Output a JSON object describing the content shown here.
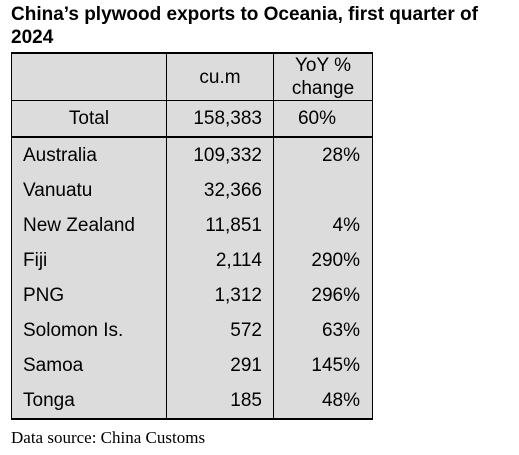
{
  "title": "China’s plywood exports to Oceania, first quarter of 2024",
  "table": {
    "headers": [
      "",
      "cu.m",
      "YoY %\nchange"
    ],
    "header_col2": "cu.m",
    "header_col3_line1": "YoY %",
    "header_col3_line2": "change",
    "total": {
      "label": "Total",
      "volume": "158,383",
      "yoy": "60%"
    },
    "rows": [
      {
        "country": "Australia",
        "volume": "109,332",
        "yoy": "28%"
      },
      {
        "country": "Vanuatu",
        "volume": "32,366",
        "yoy": ""
      },
      {
        "country": "New Zealand",
        "volume": "11,851",
        "yoy": "4%"
      },
      {
        "country": "Fiji",
        "volume": "2,114",
        "yoy": "290%"
      },
      {
        "country": "PNG",
        "volume": "1,312",
        "yoy": "296%"
      },
      {
        "country": "Solomon Is.",
        "volume": "572",
        "yoy": "63%"
      },
      {
        "country": "Samoa",
        "volume": "291",
        "yoy": "145%"
      },
      {
        "country": "Tonga",
        "volume": "185",
        "yoy": "48%"
      }
    ]
  },
  "source": "Data source: China Customs"
}
